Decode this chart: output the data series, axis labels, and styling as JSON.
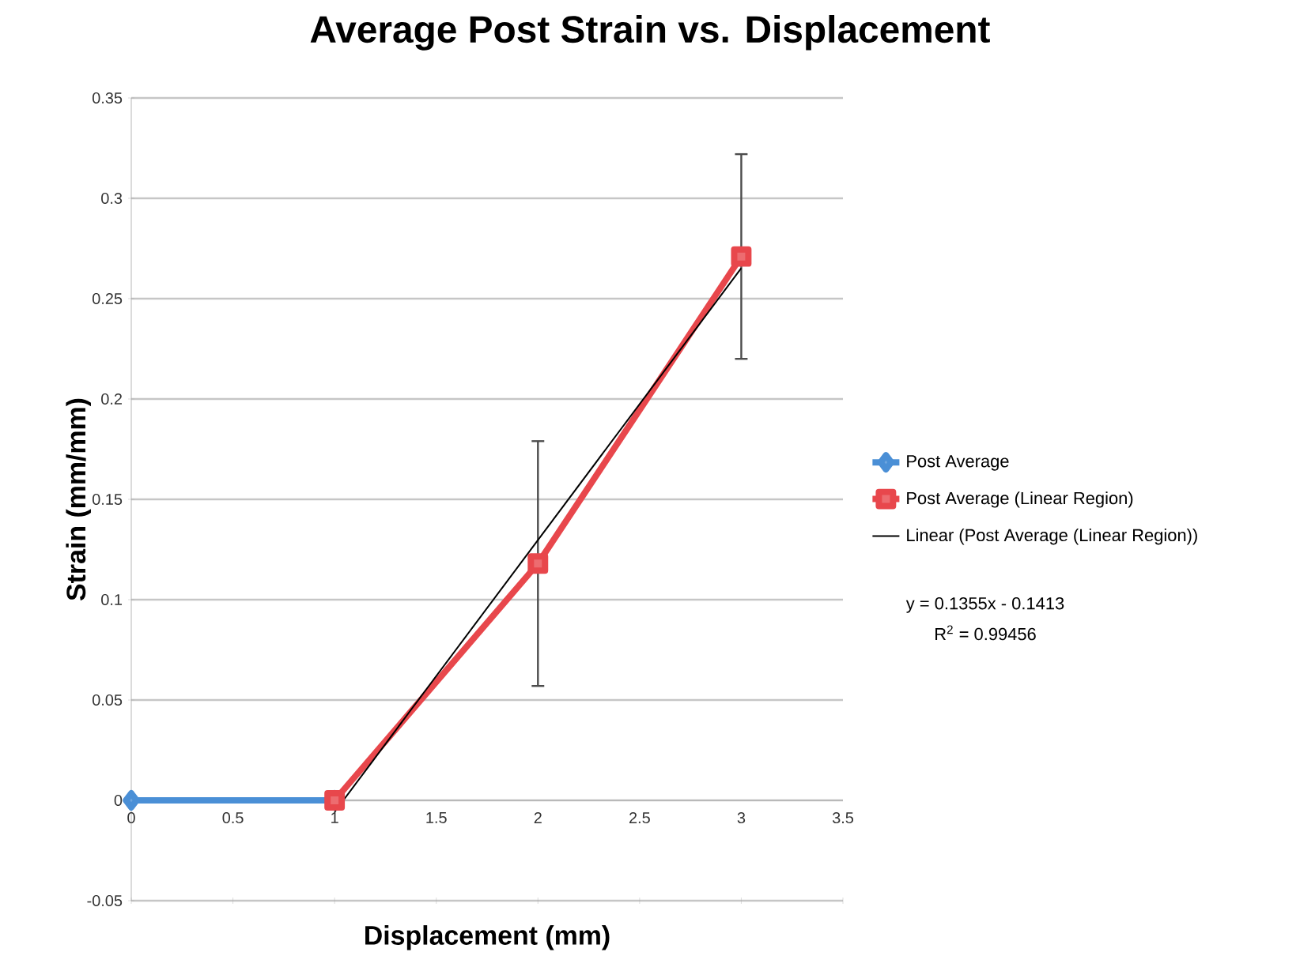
{
  "chart_data": {
    "type": "line",
    "title": "Average Post Strain vs. Displacement",
    "xlabel": "Displacement (mm)",
    "ylabel": "Strain (mm/mm)",
    "series": [
      {
        "name": "Post Average",
        "color": "#4a8fd6",
        "marker": "diamond",
        "x": [
          0,
          1
        ],
        "values": [
          0,
          0
        ]
      },
      {
        "name": "Post Average (Linear Region)",
        "color": "#e8474c",
        "marker": "square",
        "x": [
          1,
          2,
          3
        ],
        "values": [
          0,
          0.118,
          0.271
        ],
        "errors": [
          null,
          0.061,
          0.051
        ]
      },
      {
        "name": "Linear (Post Average (Linear Region))",
        "color": "#000000",
        "marker": "none",
        "x": [
          1,
          3
        ],
        "values": [
          -0.0058,
          0.2652
        ]
      }
    ],
    "annotations": [
      "y = 0.1355x - 0.1413",
      "R$^{2}$ = 0.99456"
    ],
    "xlim": [
      0,
      3.5
    ],
    "xticks": [
      0,
      0.5,
      1,
      1.5,
      2,
      2.5,
      3,
      3.5
    ],
    "ylim": [
      -0.05,
      0.35
    ],
    "yticks": [
      -0.05,
      0,
      0.05,
      0.1,
      0.15,
      0.2,
      0.25,
      0.3,
      0.35
    ],
    "grid": "y",
    "legend": "right",
    "line_style": "solid"
  }
}
